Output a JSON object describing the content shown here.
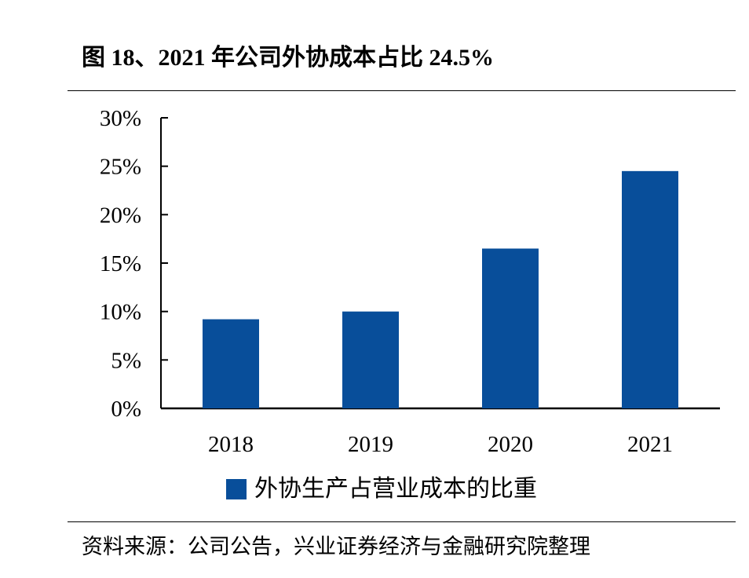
{
  "figure": {
    "title": "图 18、2021 年公司外协成本占比 24.5%",
    "source": "资料来源：公司公告，兴业证券经济与金融研究院整理"
  },
  "colors": {
    "bar": "#084E9A",
    "axis": "#000000"
  },
  "chart_data": {
    "type": "bar",
    "title": "",
    "xlabel": "",
    "ylabel": "",
    "categories": [
      "2018",
      "2019",
      "2020",
      "2021"
    ],
    "series": [
      {
        "name": "外协生产占营业成本的比重",
        "values": [
          9.2,
          10.0,
          16.5,
          24.5
        ]
      }
    ],
    "ylim": [
      0,
      30
    ],
    "yticks": [
      0,
      5,
      10,
      15,
      20,
      25,
      30
    ],
    "ytick_labels": [
      "0%",
      "5%",
      "10%",
      "15%",
      "20%",
      "25%",
      "30%"
    ],
    "value_unit": "%",
    "grid": false,
    "legend_position": "bottom"
  }
}
